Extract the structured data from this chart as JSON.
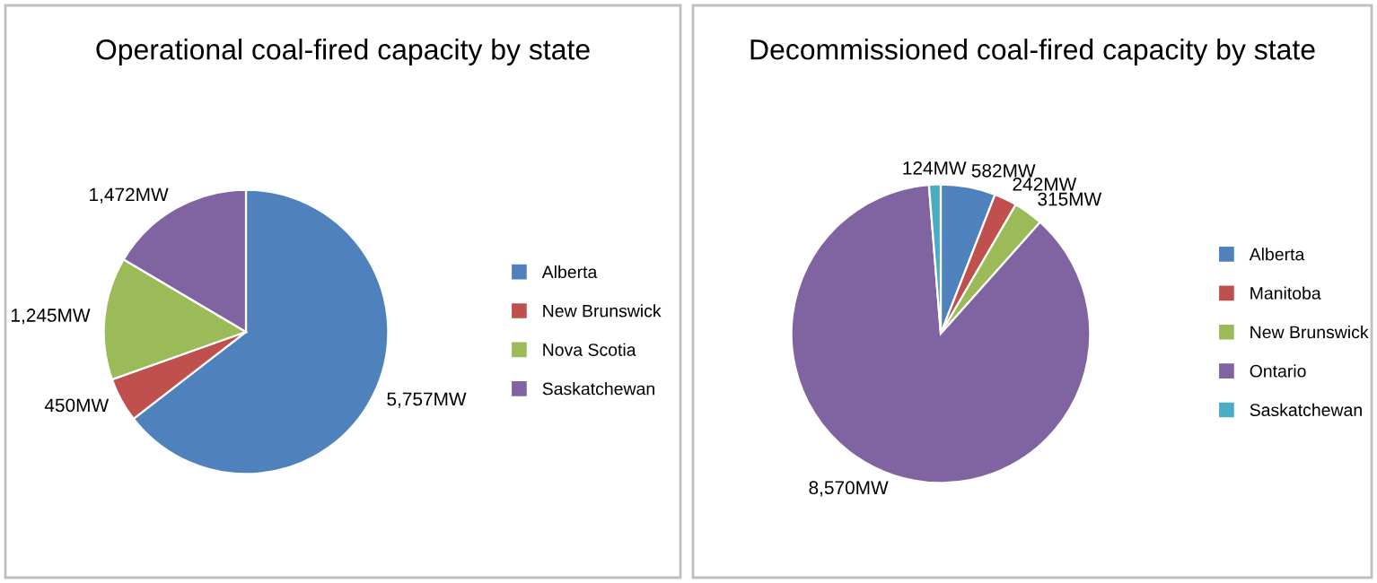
{
  "chart_data": [
    {
      "type": "pie",
      "title": "Operational coal-fired capacity by state",
      "categories": [
        "Alberta",
        "New Brunswick",
        "Nova Scotia",
        "Saskatchewan"
      ],
      "values": [
        5757,
        450,
        1245,
        1472
      ],
      "colors": [
        "#4f81bd",
        "#c0504d",
        "#9bbb59",
        "#8064a2"
      ],
      "value_labels": [
        "5,757MW",
        "450MW",
        "1,245MW",
        "1,472MW"
      ],
      "legend": "right"
    },
    {
      "type": "pie",
      "title": "Decommissioned coal-fired capacity by state",
      "categories": [
        "Alberta",
        "Manitoba",
        "New Brunswick",
        "Ontario",
        "Saskatchewan"
      ],
      "values": [
        582,
        242,
        315,
        8570,
        124
      ],
      "colors": [
        "#4f81bd",
        "#c0504d",
        "#9bbb59",
        "#8064a2",
        "#4bacc6"
      ],
      "value_labels": [
        "582MW",
        "242MW",
        "315MW",
        "8,570MW",
        "124MW"
      ],
      "legend": "right"
    }
  ]
}
